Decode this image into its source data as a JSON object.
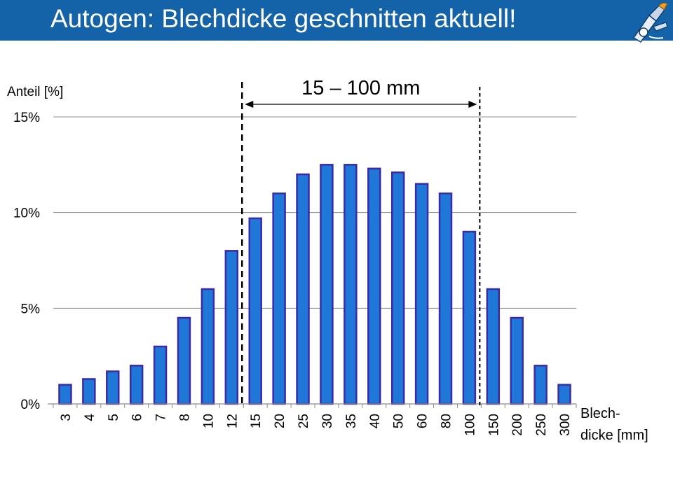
{
  "header": {
    "title": "Autogen: Blechdicke geschnitten aktuell!",
    "logo_icon": "flame-cutting-torch-logo-icon"
  },
  "chart_data": {
    "type": "bar",
    "ylabel": "Anteil [%]",
    "xlabel_line1": "Blech-",
    "xlabel_line2": "dicke [mm]",
    "categories": [
      "3",
      "4",
      "5",
      "6",
      "7",
      "8",
      "10",
      "12",
      "15",
      "20",
      "25",
      "30",
      "35",
      "40",
      "50",
      "60",
      "80",
      "100",
      "150",
      "200",
      "250",
      "300"
    ],
    "values": [
      1.0,
      1.3,
      1.7,
      2.0,
      3.0,
      4.5,
      6.0,
      8.0,
      9.7,
      11.0,
      12.0,
      12.5,
      12.5,
      12.3,
      12.1,
      11.5,
      11.0,
      9.0,
      6.0,
      4.5,
      2.0,
      1.0
    ],
    "ylim": [
      0,
      15
    ],
    "yticks": [
      0,
      5,
      10,
      15
    ],
    "ytick_labels": [
      "0%",
      "5%",
      "10%",
      "15%"
    ],
    "grid": true,
    "bar_color": "#1f78d8",
    "bar_edge_color": "#3a2aa8",
    "annotation": {
      "label": "15 – 100 mm",
      "from_category": "15",
      "to_category": "100"
    }
  }
}
